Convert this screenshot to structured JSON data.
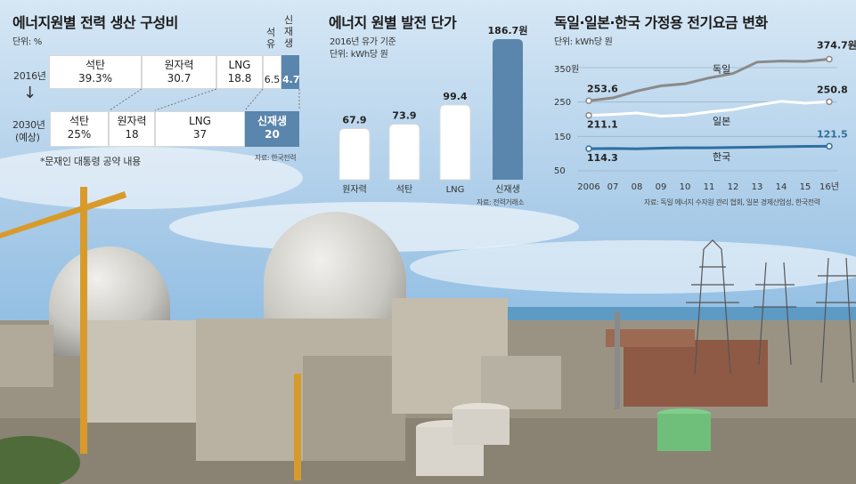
{
  "panel1": {
    "title": "에너지원별 전력 생산 구성비",
    "unit": "단위: %",
    "rows": [
      {
        "label": "2016년",
        "cells": [
          {
            "name": "석탄",
            "value": "39.3%"
          },
          {
            "name": "원자력",
            "value": "30.7"
          },
          {
            "name": "LNG",
            "value": "18.8"
          },
          {
            "name": "석유",
            "value": "6.5"
          },
          {
            "name": "신재생",
            "value": "4.7"
          }
        ]
      },
      {
        "label": "2030년",
        "sublabel": "(예상)",
        "cells": [
          {
            "name": "석탄",
            "value": "25%"
          },
          {
            "name": "원자력",
            "value": "18"
          },
          {
            "name": "LNG",
            "value": "37"
          },
          {
            "name": "신재생",
            "value": "20"
          }
        ]
      }
    ],
    "arrow": "↓",
    "footnote": "*문재인 대통령 공약 내용",
    "source": "자료: 한국전력"
  },
  "panel2": {
    "title": "에너지 원별 발전 단가",
    "note": "2016년 유가 기준",
    "unit": "단위: kWh당 원",
    "source": "자료: 전력거래소"
  },
  "panel3": {
    "title": "독일·일본·한국 가정용 전기요금 변화",
    "unit": "단위: kWh당 원",
    "yticks": [
      "350원",
      "250",
      "150",
      "50"
    ],
    "source": "자료: 독일 에너지 수자원 관리 협회, 일본 경제산업성, 한국전력"
  },
  "chart_data": [
    {
      "type": "bar",
      "title": "에너지원별 전력 생산 구성비",
      "categories": [
        "2016년",
        "2030년 (예상)"
      ],
      "series": [
        {
          "name": "석탄",
          "values": [
            39.3,
            25
          ]
        },
        {
          "name": "원자력",
          "values": [
            30.7,
            18
          ]
        },
        {
          "name": "LNG",
          "values": [
            18.8,
            37
          ]
        },
        {
          "name": "석유",
          "values": [
            6.5,
            0
          ]
        },
        {
          "name": "신재생",
          "values": [
            4.7,
            20
          ]
        }
      ]
    },
    {
      "type": "bar",
      "title": "에너지 원별 발전 단가",
      "categories": [
        "원자력",
        "석탄",
        "LNG",
        "신재생"
      ],
      "values": [
        67.9,
        73.9,
        99.4,
        186.7
      ],
      "labels": [
        "67.9",
        "73.9",
        "99.4",
        "186.7원"
      ],
      "ylim": [
        0,
        200
      ]
    },
    {
      "type": "line",
      "title": "독일·일본·한국 가정용 전기요금 변화",
      "x": [
        "2006",
        "07",
        "08",
        "09",
        "10",
        "11",
        "12",
        "13",
        "14",
        "15",
        "16년"
      ],
      "ylim": [
        50,
        380
      ],
      "series": [
        {
          "name": "독일",
          "color": "#8a8a8a",
          "values": [
            253.6,
            262,
            282,
            297,
            303,
            320,
            333,
            366,
            369,
            368,
            374.7
          ],
          "start_label": "253.6",
          "end_label": "374.7원"
        },
        {
          "name": "일본",
          "color": "#ffffff",
          "values": [
            211.1,
            214,
            218,
            209,
            212,
            221,
            228,
            241,
            252,
            247,
            250.8
          ],
          "start_label": "211.1",
          "end_label": "250.8"
        },
        {
          "name": "한국",
          "color": "#2f6f9f",
          "values": [
            114.3,
            115,
            114,
            116,
            117,
            117,
            118,
            119,
            120,
            121,
            121.5
          ],
          "start_label": "114.3",
          "end_label": "121.5"
        }
      ]
    }
  ]
}
